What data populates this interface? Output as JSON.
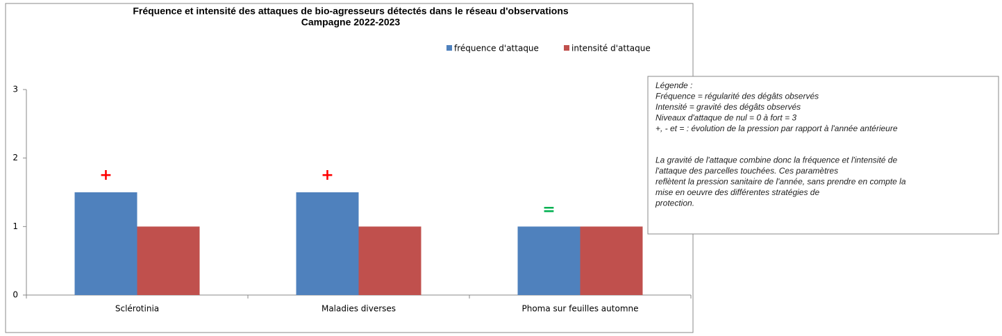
{
  "chart_data": {
    "type": "bar",
    "title": [
      "Fréquence et intensité des attaques de bio-agresseurs détectés dans le réseau d'observations",
      "Campagne 2022-2023"
    ],
    "categories": [
      "Sclérotinia",
      "Maladies diverses",
      "Phoma sur feuilles automne"
    ],
    "series": [
      {
        "name": "fréquence d'attaque",
        "color": "#4f81bd",
        "values": [
          1.5,
          1.5,
          1
        ]
      },
      {
        "name": "intensité d'attaque",
        "color": "#c0504d",
        "values": [
          1,
          1,
          1
        ]
      }
    ],
    "annotations": [
      {
        "text": "+",
        "color": "#ff0000"
      },
      {
        "text": "+",
        "color": "#ff0000"
      },
      {
        "text": "=",
        "color": "#00b050"
      }
    ],
    "ylim": [
      0,
      3
    ],
    "yticks": [
      0,
      1,
      2,
      3
    ],
    "grid": false,
    "legend": "top-right"
  },
  "note": {
    "paragraphs": [
      [
        "Légende :",
        "Fréquence = régularité des dégâts observés",
        "Intensité = gravité des dégâts observés",
        "Niveaux d'attaque de nul = 0 à fort = 3",
        "+, - et = : évolution de la pression par rapport à l'année antérieure"
      ],
      [
        "La gravité de l'attaque combine donc la fréquence et l'intensité de",
        "l'attaque des parcelles touchées. Ces paramètres",
        "reflètent la pression sanitaire de l'année, sans prendre en compte la",
        "mise en oeuvre des différentes stratégies de",
        "protection."
      ]
    ]
  }
}
